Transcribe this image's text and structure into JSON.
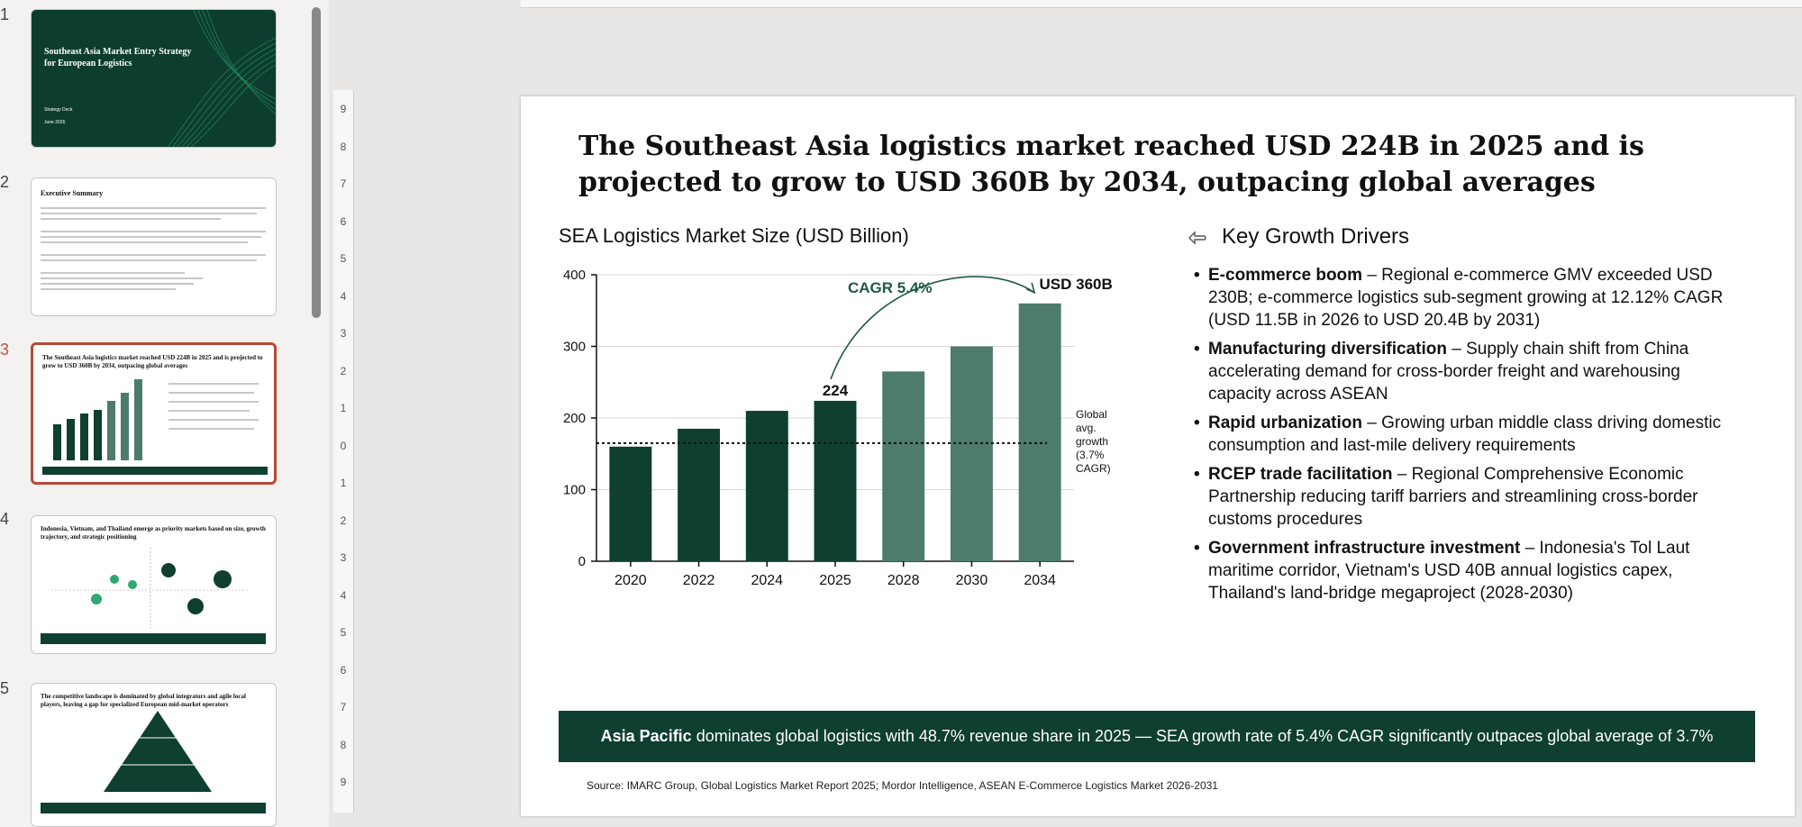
{
  "thumbnails": [
    {
      "num": "1",
      "title": "Southeast Asia Market Entry Strategy for European Logistics",
      "sub": "Strategy Deck",
      "date": "June 2026"
    },
    {
      "num": "2",
      "title": "Executive Summary"
    },
    {
      "num": "3",
      "title": "The Southeast Asia logistics market reached USD 224B in 2025 and is projected to grow to USD 360B by 2034, outpacing global averages"
    },
    {
      "num": "4",
      "title": "Indonesia, Vietnam, and Thailand emerge as priority markets based on size, growth trajectory, and strategic positioning"
    },
    {
      "num": "5",
      "title": "The competitive landscape is dominated by global integrators and agile local players, leaving a gap for specialized European mid-market operators"
    }
  ],
  "ruler_numbers": [
    "9",
    "8",
    "7",
    "6",
    "5",
    "4",
    "3",
    "2",
    "1",
    "0",
    "1",
    "2",
    "3",
    "4",
    "5",
    "6",
    "7",
    "8",
    "9"
  ],
  "slide": {
    "title": "The Southeast Asia logistics market reached USD 224B in 2025 and is projected to grow to USD 360B by 2034, outpacing global averages",
    "chart_title": "SEA Logistics Market Size (USD Billion)",
    "drivers_title": "Key Growth Drivers",
    "drivers": [
      {
        "bold": "E-commerce boom",
        "text": " – Regional e-commerce GMV exceeded USD 230B; e-commerce logistics sub-segment growing at 12.12% CAGR (USD 11.5B in 2026 to USD 20.4B by 2031)"
      },
      {
        "bold": "Manufacturing diversification",
        "text": " – Supply chain shift from China accelerating demand for cross-border freight and warehousing capacity across ASEAN"
      },
      {
        "bold": "Rapid urbanization",
        "text": " – Growing urban middle class driving domestic consumption and last-mile delivery requirements"
      },
      {
        "bold": "RCEP trade facilitation",
        "text": " – Regional Comprehensive Economic Partnership reducing tariff barriers and streamlining cross-border customs procedures"
      },
      {
        "bold": "Government infrastructure investment",
        "text": " – Indonesia's Tol Laut maritime corridor, Vietnam's USD 40B annual logistics capex, Thailand's land-bridge megaproject (2028-2030)"
      }
    ],
    "banner_bold": "Asia Pacific",
    "banner_text": "dominates global logistics with 48.7% revenue share in 2025 — SEA growth rate of 5.4% CAGR significantly outpaces global average of 3.7%",
    "source": "Source: IMARC Group, Global Logistics Market Report 2025; Mordor Intelligence, ASEAN E-Commerce Logistics Market 2026-2031"
  },
  "chart_data": {
    "type": "bar",
    "title": "SEA Logistics Market Size (USD Billion)",
    "categories": [
      "2020",
      "2022",
      "2024",
      "2025",
      "2028",
      "2030",
      "2034"
    ],
    "values": [
      160,
      185,
      210,
      224,
      265,
      300,
      360
    ],
    "projected_from_index": 4,
    "ylim": [
      0,
      400
    ],
    "yticks": [
      0,
      100,
      200,
      300,
      400
    ],
    "labels": {
      "2025": "224",
      "2034": "USD 360B"
    },
    "cagr_label": "CAGR 5.4%",
    "reference_line": {
      "value": 165,
      "label": "Global avg. growth (3.7% CAGR)",
      "label_lines": [
        "Global",
        "avg.",
        "growth",
        "(3.7%",
        "CAGR)"
      ]
    },
    "colors": {
      "actual": "#0e3f30",
      "projected": "#4d7b6c",
      "axis": "#111111",
      "grid": "#d8d8d8"
    }
  }
}
